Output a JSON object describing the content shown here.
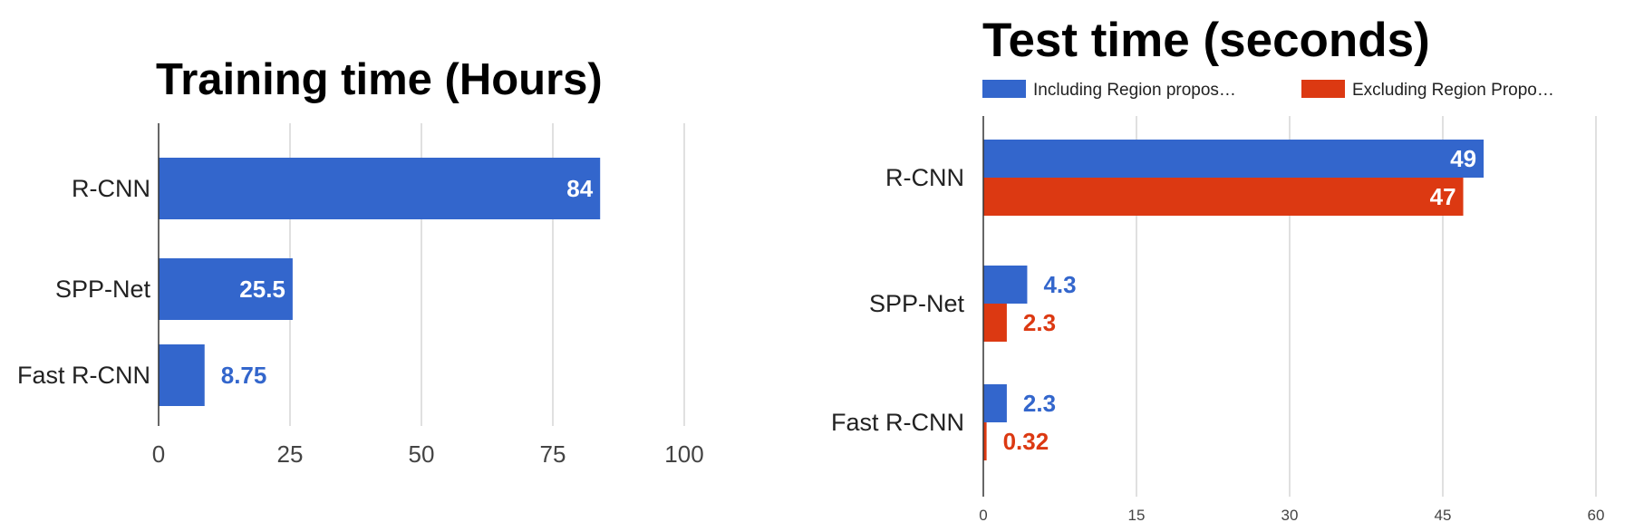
{
  "chart_data": [
    {
      "type": "bar",
      "orientation": "horizontal",
      "title": "Training time (Hours)",
      "categories": [
        "R-CNN",
        "SPP-Net",
        "Fast R-CNN"
      ],
      "series": [
        {
          "values": [
            84,
            25.5,
            8.75
          ]
        }
      ],
      "data_labels": [
        "84",
        "25.5",
        "8.75"
      ],
      "xlim": [
        0,
        100
      ],
      "xticks": [
        0,
        25,
        50,
        75,
        100
      ],
      "xtick_labels": [
        "0",
        "25",
        "50",
        "75",
        "100"
      ],
      "grid": true,
      "colors": [
        "#3366cc"
      ]
    },
    {
      "type": "bar",
      "orientation": "horizontal",
      "title": "Test time (seconds)",
      "categories": [
        "R-CNN",
        "SPP-Net",
        "Fast R-CNN"
      ],
      "series": [
        {
          "name": "Including Region propos…",
          "values": [
            49,
            4.3,
            2.3
          ]
        },
        {
          "name": "Excluding Region Propo…",
          "values": [
            47,
            2.3,
            0.32
          ]
        }
      ],
      "data_labels": [
        [
          "49",
          "4.3",
          "2.3"
        ],
        [
          "47",
          "2.3",
          "0.32"
        ]
      ],
      "xlim": [
        0,
        60
      ],
      "xticks": [
        0,
        15,
        30,
        45,
        60
      ],
      "xtick_labels": [
        "0",
        "15",
        "30",
        "45",
        "60"
      ],
      "grid": true,
      "legend": "top",
      "colors": [
        "#3366cc",
        "#dc3912"
      ]
    }
  ]
}
